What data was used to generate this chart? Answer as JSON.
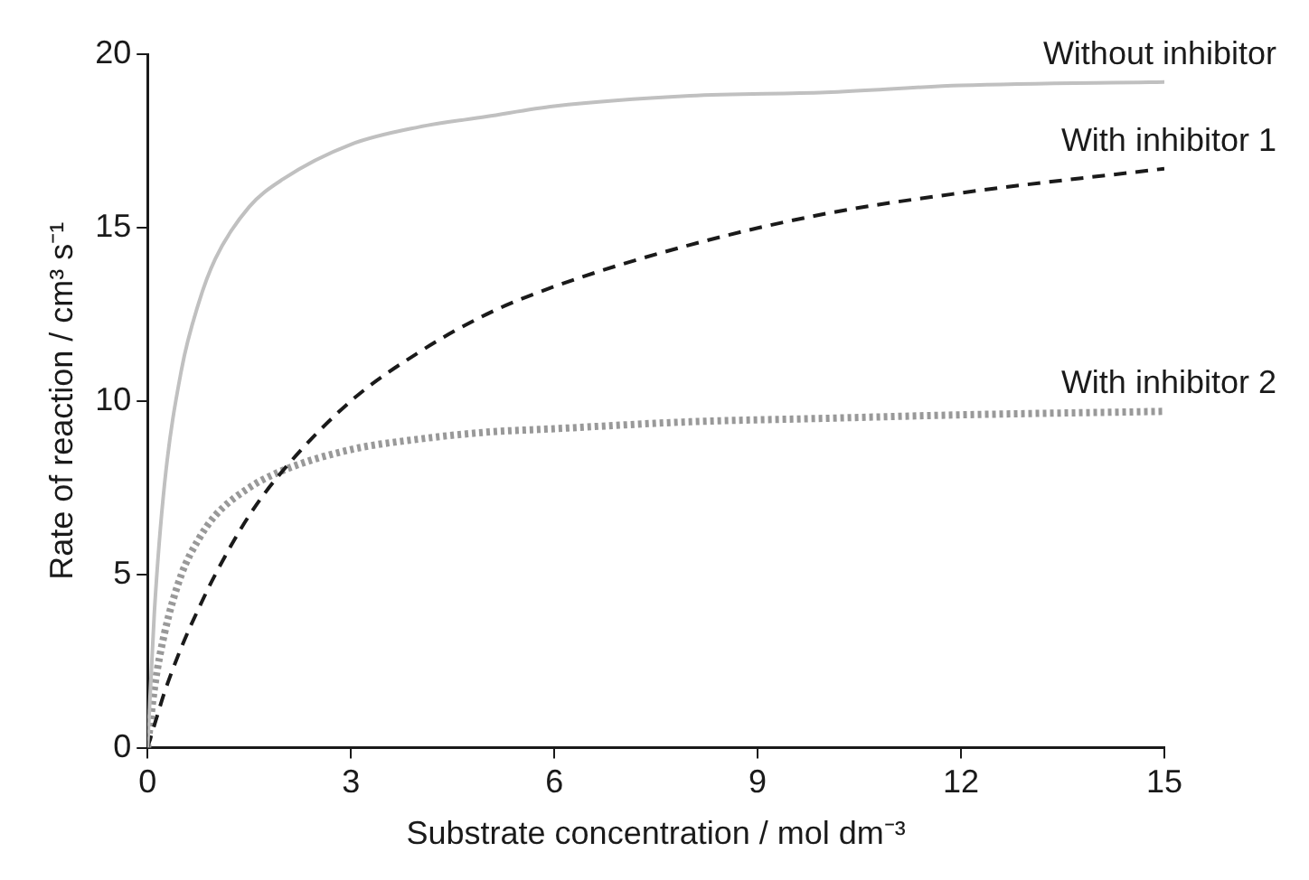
{
  "chart_data": {
    "type": "line",
    "xlabel": "Substrate concentration / mol dm⁻³",
    "ylabel": "Rate of reaction / cm³ s⁻¹",
    "x": [
      0,
      0.1,
      0.25,
      0.5,
      0.75,
      1,
      1.5,
      2,
      3,
      4,
      5,
      6,
      8,
      10,
      12,
      15
    ],
    "series": [
      {
        "name": "Without inhibitor",
        "color": "#c0c0c0",
        "line_style": "solid",
        "values": [
          0,
          3.9,
          7.6,
          10.9,
          12.8,
          14.1,
          15.6,
          16.4,
          17.4,
          17.9,
          18.2,
          18.5,
          18.8,
          18.9,
          19.1,
          19.2
        ]
      },
      {
        "name": "With inhibitor 1",
        "color": "#1a1a1a",
        "line_style": "dashed",
        "values": [
          0,
          0.65,
          1.6,
          2.9,
          4.0,
          5.0,
          6.7,
          8.0,
          10.0,
          11.4,
          12.5,
          13.3,
          14.5,
          15.4,
          16.0,
          16.7
        ]
      },
      {
        "name": "With inhibitor 2",
        "color": "#999999",
        "line_style": "dotted",
        "values": [
          0,
          1.7,
          3.3,
          5.0,
          6.0,
          6.7,
          7.5,
          8.0,
          8.6,
          8.9,
          9.1,
          9.2,
          9.4,
          9.5,
          9.6,
          9.7
        ]
      }
    ],
    "xlim": [
      0,
      15
    ],
    "xticks": [
      0,
      3,
      6,
      9,
      12,
      15
    ],
    "ylim": [
      0,
      20
    ],
    "yticks": [
      0,
      5,
      10,
      15,
      20
    ],
    "grid": false,
    "legend": false,
    "marker": "none"
  }
}
